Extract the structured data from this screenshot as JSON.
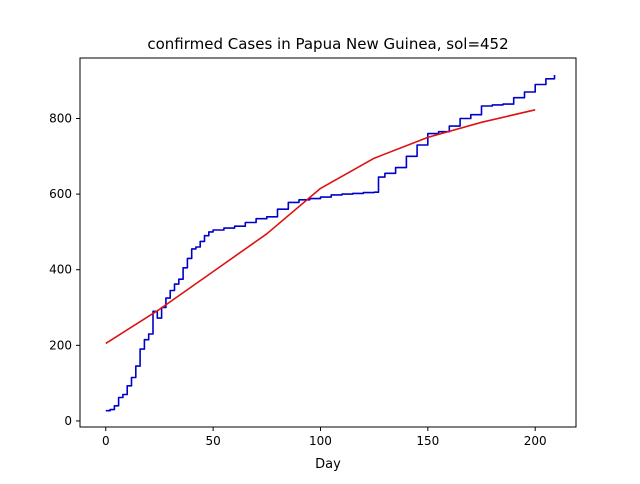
{
  "chart_data": {
    "type": "line",
    "title": "confirmed Cases in Papua New Guinea, sol=452",
    "xlabel": "Day",
    "ylabel": "",
    "xlim": [
      -12,
      219
    ],
    "ylim": [
      -16,
      960
    ],
    "xticks": [
      0,
      50,
      100,
      150,
      200
    ],
    "yticks": [
      0,
      200,
      400,
      600,
      800
    ],
    "grid": false,
    "legend": "none",
    "series": [
      {
        "color": "#0000cc",
        "style": "step",
        "x": [
          0,
          2,
          4,
          6,
          8,
          10,
          12,
          14,
          16,
          18,
          20,
          22,
          24,
          26,
          28,
          30,
          32,
          34,
          36,
          38,
          40,
          42,
          44,
          46,
          48,
          50,
          55,
          60,
          65,
          70,
          75,
          80,
          85,
          90,
          95,
          100,
          105,
          110,
          115,
          120,
          125,
          127,
          130,
          135,
          140,
          145,
          150,
          155,
          160,
          165,
          170,
          175,
          180,
          185,
          190,
          195,
          200,
          205,
          209
        ],
        "y": [
          27,
          30,
          40,
          62,
          70,
          93,
          115,
          145,
          190,
          215,
          230,
          290,
          272,
          300,
          325,
          345,
          362,
          375,
          405,
          430,
          455,
          460,
          475,
          490,
          500,
          505,
          510,
          515,
          525,
          535,
          540,
          560,
          578,
          585,
          588,
          592,
          598,
          600,
          602,
          604,
          605,
          645,
          655,
          670,
          700,
          730,
          760,
          765,
          780,
          800,
          810,
          833,
          836,
          838,
          855,
          870,
          890,
          905,
          915
        ]
      },
      {
        "color": "#dd1111",
        "style": "smooth",
        "x": [
          0,
          25,
          50,
          75,
          100,
          125,
          150,
          175,
          200
        ],
        "y": [
          205,
          295,
          395,
          495,
          615,
          695,
          750,
          790,
          823
        ]
      }
    ]
  }
}
